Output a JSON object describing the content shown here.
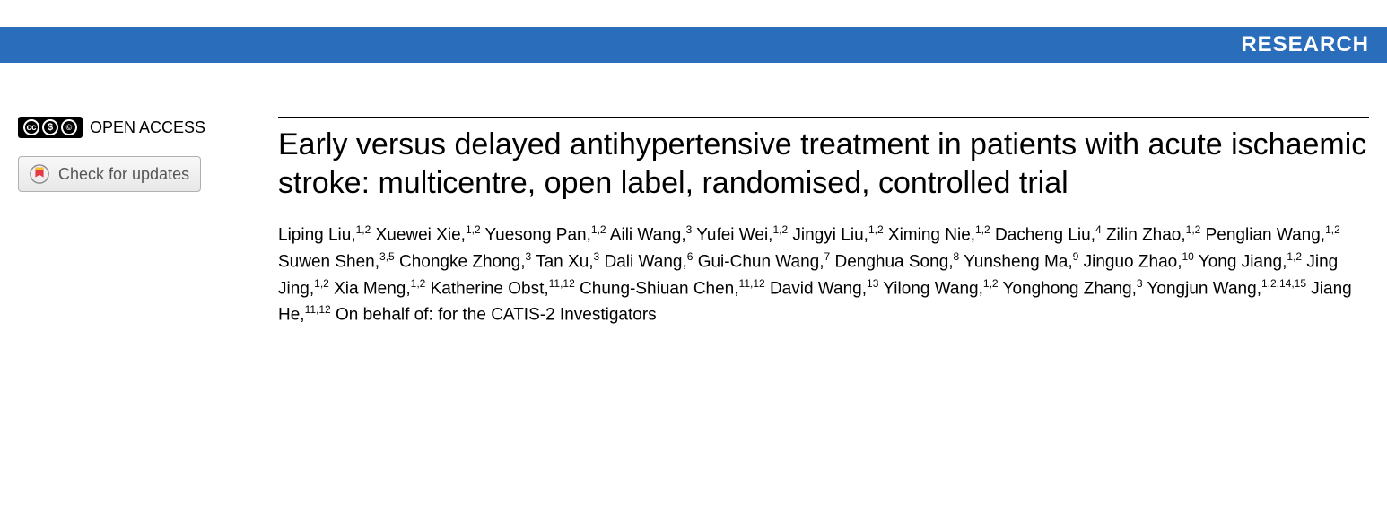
{
  "banner": {
    "label": "RESEARCH",
    "background_color": "#2a6ebb",
    "text_color": "#ffffff"
  },
  "sidebar": {
    "open_access_label": "OPEN ACCESS",
    "cc_icons": [
      "cc",
      "$",
      "©"
    ],
    "updates_button_label": "Check for updates"
  },
  "article": {
    "title": "Early versus delayed antihypertensive treatment in patients with acute ischaemic stroke: multicentre, open label, randomised, controlled trial",
    "authors": [
      {
        "name": "Liping Liu",
        "aff": "1,2"
      },
      {
        "name": "Xuewei Xie",
        "aff": "1,2"
      },
      {
        "name": "Yuesong Pan",
        "aff": "1,2"
      },
      {
        "name": "Aili Wang",
        "aff": "3"
      },
      {
        "name": "Yufei Wei",
        "aff": "1,2"
      },
      {
        "name": "Jingyi Liu",
        "aff": "1,2"
      },
      {
        "name": "Ximing Nie",
        "aff": "1,2"
      },
      {
        "name": "Dacheng Liu",
        "aff": "4"
      },
      {
        "name": "Zilin Zhao",
        "aff": "1,2"
      },
      {
        "name": "Penglian Wang",
        "aff": "1,2"
      },
      {
        "name": "Suwen Shen",
        "aff": "3,5"
      },
      {
        "name": "Chongke Zhong",
        "aff": "3"
      },
      {
        "name": "Tan Xu",
        "aff": "3"
      },
      {
        "name": "Dali Wang",
        "aff": "6"
      },
      {
        "name": "Gui-Chun Wang",
        "aff": "7"
      },
      {
        "name": "Denghua Song",
        "aff": "8"
      },
      {
        "name": "Yunsheng Ma",
        "aff": "9"
      },
      {
        "name": "Jinguo Zhao",
        "aff": "10"
      },
      {
        "name": "Yong Jiang",
        "aff": "1,2"
      },
      {
        "name": "Jing Jing",
        "aff": "1,2"
      },
      {
        "name": "Xia Meng",
        "aff": "1,2"
      },
      {
        "name": "Katherine Obst",
        "aff": "11,12"
      },
      {
        "name": "Chung-Shiuan Chen",
        "aff": "11,12"
      },
      {
        "name": "David Wang",
        "aff": "13"
      },
      {
        "name": "Yilong Wang",
        "aff": "1,2"
      },
      {
        "name": "Yonghong Zhang",
        "aff": "3"
      },
      {
        "name": "Yongjun Wang",
        "aff": "1,2,14,15"
      },
      {
        "name": "Jiang He",
        "aff": "11,12"
      }
    ],
    "on_behalf_text": "On behalf of: for the CATIS-2 Investigators"
  },
  "styling": {
    "title_fontsize": 34,
    "author_fontsize": 19,
    "banner_fontsize": 24,
    "font_family_title": "Arial",
    "font_family_body": "Arial",
    "background_color": "#ffffff",
    "text_color": "#000000",
    "rule_color": "#000000"
  }
}
